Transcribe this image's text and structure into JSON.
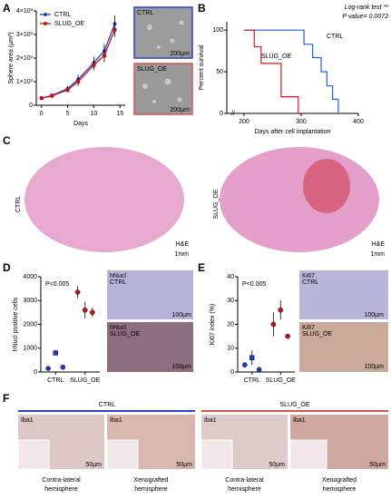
{
  "figure": {
    "panel_labels": [
      "A",
      "B",
      "C",
      "D",
      "E",
      "F"
    ],
    "a_images": [
      {
        "label": "CTRL",
        "scale": "200µm"
      },
      {
        "label": "SLUG_OE",
        "scale": "200µm"
      }
    ],
    "c_images": [
      {
        "label": "CTRL",
        "stain": "H&E",
        "scale": "1mm"
      },
      {
        "label": "SLUG_OE",
        "stain": "H&E",
        "scale": "1mm"
      }
    ],
    "d_images": [
      {
        "marker": "hNucl",
        "label": "CTRL",
        "scale": "100µm"
      },
      {
        "marker": "hNucl",
        "label": "SLUG_OE",
        "scale": "100µm"
      }
    ],
    "e_images": [
      {
        "marker": "Ki67",
        "label": "CTRL",
        "scale": "100µm"
      },
      {
        "marker": "Ki67",
        "label": "SLUG_OE",
        "scale": "100µm"
      }
    ],
    "f": {
      "groups": [
        "CTRL",
        "SLUG_OE"
      ],
      "images": [
        {
          "stain": "Iba1",
          "scale": "50µm",
          "caption": [
            "Contra-lateral",
            "hemisphere"
          ]
        },
        {
          "stain": "Iba1",
          "scale": "50µm",
          "caption": [
            "Xenografted",
            "hemisphere"
          ]
        },
        {
          "stain": "Iba1",
          "scale": "50µm",
          "caption": [
            "Contra-lateral",
            "hemisphere"
          ]
        },
        {
          "stain": "Iba1",
          "scale": "50µm",
          "caption": [
            "Xenografted",
            "hemisphere"
          ]
        }
      ]
    }
  },
  "chart_data": [
    {
      "type": "line",
      "xlabel": "Days",
      "ylabel": "Sphere area (µm²)",
      "x": [
        0,
        2,
        5,
        7,
        10,
        12,
        14
      ],
      "xlim": [
        -1,
        16
      ],
      "xticks": [
        0,
        5,
        10,
        15
      ],
      "ylim": [
        0,
        4000
      ],
      "yticks": [
        0,
        {
          "value": 1000,
          "label": "1×10³"
        },
        {
          "value": 2000,
          "label": "2×10³"
        },
        {
          "value": 3000,
          "label": "3×10³"
        },
        {
          "value": 4000,
          "label": "4×10³"
        }
      ],
      "legend": "upper left",
      "series": [
        {
          "name": "CTRL",
          "color": "#1f3fbf",
          "values": [
            300,
            420,
            700,
            1100,
            1800,
            2300,
            3450
          ],
          "errors": [
            50,
            80,
            120,
            200,
            250,
            300,
            350
          ]
        },
        {
          "name": "SLUG_OE",
          "color": "#c0141c",
          "values": [
            300,
            400,
            650,
            1000,
            1700,
            2100,
            3200
          ],
          "errors": [
            50,
            80,
            100,
            180,
            220,
            280,
            300
          ]
        }
      ]
    },
    {
      "type": "step",
      "xlabel": "Days after cell implantation",
      "ylabel": "Percent survival",
      "xlim": [
        170,
        400
      ],
      "xticks": [
        200,
        300,
        400
      ],
      "ylim": [
        0,
        110
      ],
      "yticks": [
        0,
        50,
        100
      ],
      "annotations": [
        "Log-rank test **",
        "P value= 0.0072"
      ],
      "series": [
        {
          "name": "CTRL",
          "color": "#1f5fe0",
          "x": [
            200,
            305,
            320,
            335,
            345,
            355,
            365
          ],
          "values": [
            100,
            83,
            67,
            50,
            33,
            17,
            0
          ]
        },
        {
          "name": "SLUG_OE",
          "color": "#e0141c",
          "x": [
            200,
            218,
            230,
            265,
            295
          ],
          "values": [
            100,
            80,
            60,
            20,
            0
          ]
        }
      ]
    },
    {
      "type": "dot",
      "ylabel": "hNucl positive cells",
      "annotations": [
        "P<0.005"
      ],
      "xlim": [
        0,
        8
      ],
      "xticks": [
        {
          "value": 2,
          "label": "CTRL"
        },
        {
          "value": 6,
          "label": "SLUG_OE"
        }
      ],
      "ylim": [
        0,
        4000
      ],
      "yticks": [
        0,
        1000,
        2000,
        3000,
        4000
      ],
      "x": [
        1,
        2,
        3,
        5,
        6,
        7
      ],
      "values": [
        150,
        800,
        200,
        3350,
        2600,
        2500
      ],
      "errors": [
        0,
        60,
        0,
        250,
        350,
        200
      ],
      "colors": [
        "#1f3fbf",
        "#1f3fbf",
        "#1f3fbf",
        "#c0141c",
        "#c0141c",
        "#c0141c"
      ],
      "markers": [
        "circle",
        "square",
        "circle",
        "circle",
        "circle",
        "circle"
      ]
    },
    {
      "type": "dot",
      "ylabel": "Ki67 index (%)",
      "annotations": [
        "P<0.005"
      ],
      "xlim": [
        0,
        8
      ],
      "xticks": [
        {
          "value": 2,
          "label": "CTRL"
        },
        {
          "value": 6,
          "label": "SLUG_OE"
        }
      ],
      "ylim": [
        0,
        40
      ],
      "yticks": [
        0,
        10,
        20,
        30,
        40
      ],
      "x": [
        1,
        2,
        3,
        5,
        6,
        7
      ],
      "values": [
        3,
        6,
        1,
        20,
        26,
        15
      ],
      "errors": [
        1,
        3,
        0,
        5,
        4,
        1
      ],
      "colors": [
        "#1f3fbf",
        "#1f3fbf",
        "#1f3fbf",
        "#c0141c",
        "#c0141c",
        "#c0141c"
      ],
      "markers": [
        "circle",
        "square",
        "circle",
        "circle",
        "circle",
        "circle"
      ]
    }
  ]
}
